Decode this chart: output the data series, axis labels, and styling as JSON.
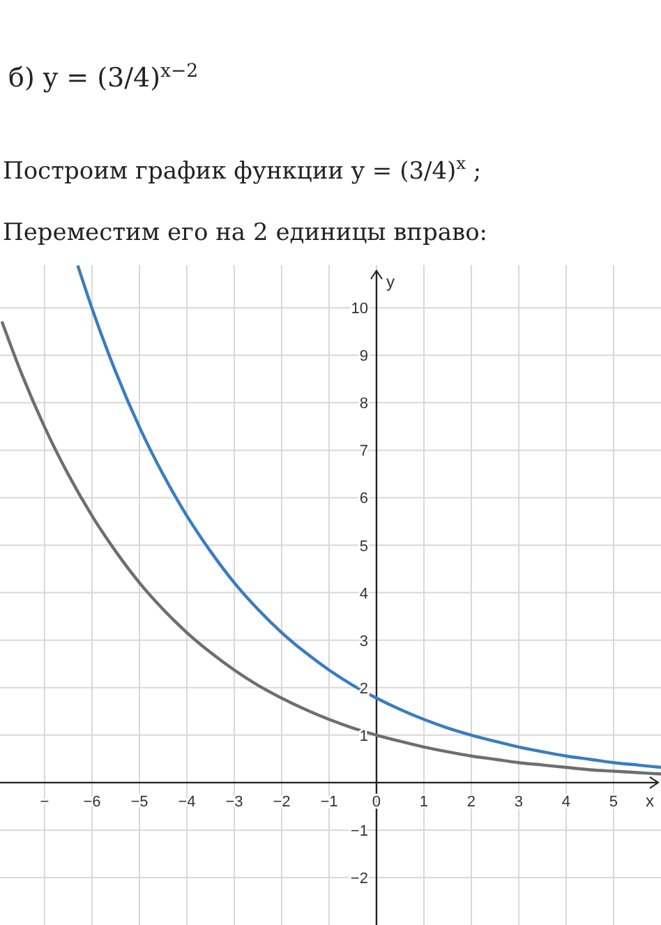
{
  "chart_data": {
    "type": "line",
    "title": "б) y = (3/4)$^{x−2}$",
    "subtitle": "Построим график функции y = (3/4)$^{x}$ ;",
    "annotations": [
      "Переместим его на 2 единицы вправо:"
    ],
    "xlabel": "x",
    "ylabel": "y",
    "xlim": [
      -7.94,
      6
    ],
    "ylim": [
      -3,
      10.9
    ],
    "xticks": [
      {
        "value": -7,
        "label": "−"
      },
      -6,
      -5,
      -4,
      -3,
      -2,
      -1,
      0,
      1,
      2,
      3,
      4,
      5
    ],
    "yticks": [
      -2,
      -1,
      1,
      2,
      3,
      4,
      5,
      6,
      7,
      8,
      9,
      10
    ],
    "grid": true,
    "series": [
      {
        "color": "#6e6e6e",
        "x": [
          -7.9,
          -7.5,
          -7,
          -6.5,
          -6,
          -5.5,
          -5,
          -4.5,
          -4,
          -3.5,
          -3,
          -2.5,
          -2,
          -1.5,
          -1,
          -0.5,
          0,
          0.5,
          1,
          1.5,
          2,
          2.5,
          3,
          3.5,
          4,
          4.5,
          5,
          5.5,
          6
        ],
        "values": [
          9.71,
          8.65,
          7.49,
          6.49,
          5.62,
          4.87,
          4.21,
          3.65,
          3.16,
          2.74,
          2.37,
          2.05,
          1.78,
          1.54,
          1.33,
          1.15,
          1,
          0.87,
          0.75,
          0.65,
          0.56,
          0.49,
          0.42,
          0.37,
          0.32,
          0.27,
          0.24,
          0.21,
          0.18
        ]
      },
      {
        "color": "#3a7cc0",
        "x": [
          -6.3,
          -6,
          -5.5,
          -5,
          -4.5,
          -4,
          -3.5,
          -3,
          -2.5,
          -2,
          -1.5,
          -1,
          -0.5,
          0,
          0.5,
          1,
          1.5,
          2,
          2.5,
          3,
          3.5,
          4,
          4.5,
          5,
          5.5,
          6
        ],
        "values": [
          10.89,
          9.99,
          8.65,
          7.49,
          6.49,
          5.62,
          4.87,
          4.21,
          3.65,
          3.16,
          2.74,
          2.37,
          2.05,
          1.78,
          1.54,
          1.33,
          1.15,
          1,
          0.87,
          0.75,
          0.65,
          0.56,
          0.49,
          0.42,
          0.37,
          0.32
        ]
      }
    ]
  }
}
